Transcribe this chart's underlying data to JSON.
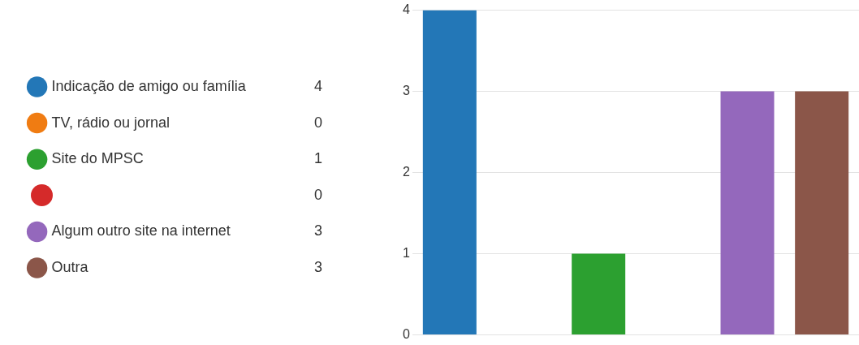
{
  "chart_data": {
    "type": "bar",
    "categories": [
      null,
      null,
      null,
      null,
      null,
      null
    ],
    "series": [
      {
        "name": "Indicação de amigo ou família",
        "color": "#2377b7",
        "values": [
          4,
          null,
          null,
          null,
          null,
          null
        ]
      },
      {
        "name": "TV, rádio ou jornal",
        "color": "#f07c12",
        "values": [
          null,
          0,
          null,
          null,
          null,
          null
        ]
      },
      {
        "name": "Site do MPSC",
        "color": "#2ca030",
        "values": [
          null,
          null,
          1,
          null,
          null,
          null
        ]
      },
      {
        "color": "#d52a2a",
        "values": [
          null,
          null,
          null,
          0,
          null,
          null
        ]
      },
      {
        "name": "Algum outro site na internet",
        "color": "#9468bc",
        "values": [
          null,
          null,
          null,
          null,
          3,
          null
        ]
      },
      {
        "name": "Outra",
        "color": "#8b5649",
        "values": [
          null,
          null,
          null,
          null,
          null,
          3
        ]
      }
    ],
    "annotations": [
      "4",
      "0",
      "1",
      "0",
      "3",
      "3"
    ],
    "ylim": [
      0,
      4
    ],
    "yticks": [
      0,
      1,
      2,
      3,
      4
    ],
    "grid": "y",
    "legend": "left",
    "tick_labels": "y"
  }
}
